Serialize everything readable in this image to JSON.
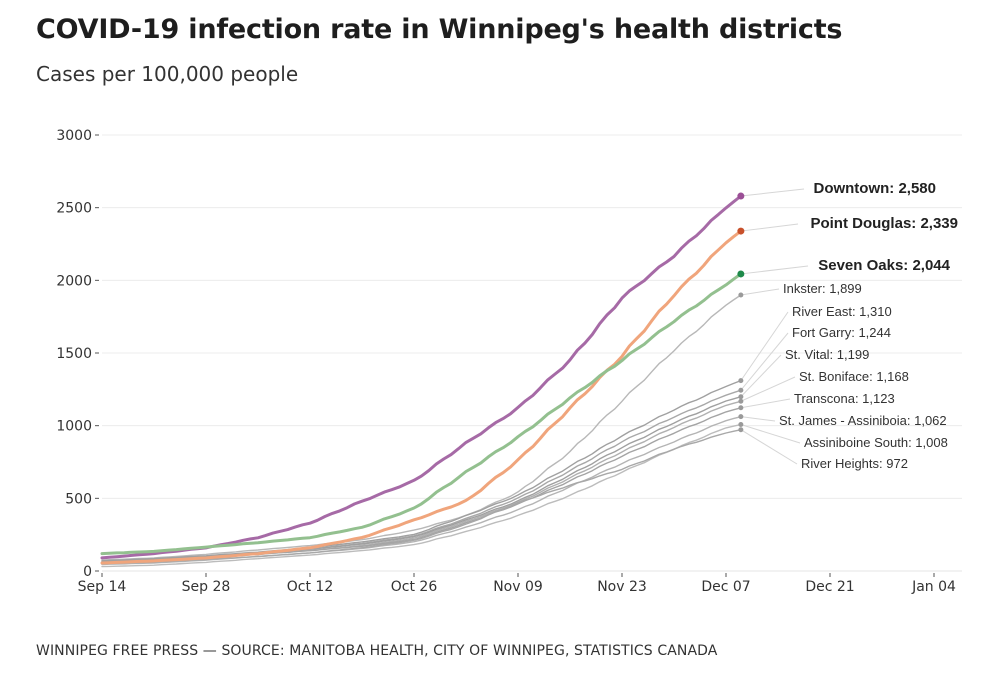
{
  "header": {
    "title": "COVID-19 infection rate in Winnipeg's health districts",
    "subtitle": "Cases per 100,000 people"
  },
  "footer": {
    "credit": "WINNIPEG FREE PRESS — SOURCE: MANITOBA HEALTH, CITY OF WINNIPEG, STATISTICS CANADA"
  },
  "chart_data": {
    "type": "line",
    "title": "COVID-19 infection rate in Winnipeg's health districts",
    "subtitle": "Cases per 100,000 people",
    "xlabel": "",
    "ylabel": "",
    "x_ticks": [
      "Sep 14",
      "Sep 28",
      "Oct 12",
      "Oct 26",
      "Nov 09",
      "Nov 23",
      "Dec 07",
      "Dec 21",
      "Jan 04"
    ],
    "x_tick_days": [
      0,
      14,
      28,
      42,
      56,
      70,
      84,
      98,
      112
    ],
    "xlim_days": [
      0,
      112
    ],
    "y_ticks": [
      0,
      500,
      1000,
      1500,
      2000,
      2500,
      3000
    ],
    "ylim": [
      0,
      3000
    ],
    "grid": true,
    "x_days": [
      0,
      7,
      14,
      21,
      28,
      35,
      42,
      49,
      56,
      63,
      70,
      77,
      84,
      86
    ],
    "x_dates": [
      "Sep 14",
      "Sep 21",
      "Sep 28",
      "Oct 05",
      "Oct 12",
      "Oct 19",
      "Oct 26",
      "Nov 02",
      "Nov 09",
      "Nov 16",
      "Nov 23",
      "Nov 30",
      "Dec 07",
      "Dec 09"
    ],
    "series": [
      {
        "name": "Downtown",
        "label": "Downtown: 2,580",
        "highlight": true,
        "color": "#a66aa6",
        "dot": "#9b4f96",
        "last": 2580,
        "values": [
          90,
          120,
          160,
          230,
          330,
          480,
          620,
          880,
          1120,
          1450,
          1880,
          2170,
          2500,
          2580
        ]
      },
      {
        "name": "Point Douglas",
        "label": "Point Douglas: 2,339",
        "highlight": true,
        "color": "#f0a57c",
        "dot": "#c8502a",
        "last": 2339,
        "values": [
          55,
          70,
          90,
          120,
          160,
          230,
          350,
          480,
          760,
          1120,
          1480,
          1900,
          2260,
          2339
        ]
      },
      {
        "name": "Seven Oaks",
        "label": "Seven Oaks: 2,044",
        "highlight": true,
        "color": "#93c08f",
        "dot": "#1e8a4a",
        "last": 2044,
        "values": [
          120,
          135,
          165,
          195,
          230,
          300,
          430,
          680,
          920,
          1190,
          1450,
          1720,
          1970,
          2044
        ]
      },
      {
        "name": "Inkster",
        "label": "Inkster: 1,899",
        "highlight": false,
        "color": "#b8b8b8",
        "dot": "#9a9a9a",
        "last": 1899,
        "values": [
          75,
          90,
          115,
          145,
          175,
          215,
          280,
          380,
          540,
          820,
          1170,
          1520,
          1830,
          1899
        ]
      },
      {
        "name": "River East",
        "label": "River East: 1,310",
        "highlight": false,
        "color": "#a0a0a0",
        "dot": "#9a9a9a",
        "last": 1310,
        "values": [
          70,
          85,
          105,
          130,
          160,
          200,
          250,
          380,
          520,
          720,
          930,
          1110,
          1270,
          1310
        ]
      },
      {
        "name": "Fort Garry",
        "label": "Fort Garry: 1,244",
        "highlight": false,
        "color": "#a8a8a8",
        "dot": "#9a9a9a",
        "last": 1244,
        "values": [
          60,
          75,
          95,
          120,
          150,
          190,
          240,
          360,
          500,
          690,
          890,
          1060,
          1210,
          1244
        ]
      },
      {
        "name": "St. Vital",
        "label": "St. Vital: 1,199",
        "highlight": false,
        "color": "#a0a0a0",
        "dot": "#9a9a9a",
        "last": 1199,
        "values": [
          65,
          80,
          100,
          125,
          150,
          185,
          235,
          350,
          480,
          660,
          850,
          1020,
          1170,
          1199
        ]
      },
      {
        "name": "St. Boniface",
        "label": "St. Boniface: 1,168",
        "highlight": false,
        "color": "#b0b0b0",
        "dot": "#9a9a9a",
        "last": 1168,
        "values": [
          55,
          70,
          90,
          115,
          140,
          175,
          225,
          340,
          470,
          640,
          820,
          990,
          1140,
          1168
        ]
      },
      {
        "name": "Transcona",
        "label": "Transcona: 1,123",
        "highlight": false,
        "color": "#a4a4a4",
        "dot": "#9a9a9a",
        "last": 1123,
        "values": [
          60,
          75,
          95,
          115,
          140,
          170,
          215,
          330,
          460,
          620,
          790,
          950,
          1095,
          1123
        ]
      },
      {
        "name": "St. James - Assiniboia",
        "label": "St. James - Assiniboia: 1,062",
        "highlight": false,
        "color": "#b4b4b4",
        "dot": "#9a9a9a",
        "last": 1062,
        "values": [
          45,
          55,
          75,
          100,
          125,
          155,
          200,
          300,
          420,
          580,
          740,
          890,
          1035,
          1062
        ]
      },
      {
        "name": "Assiniboine South",
        "label": "Assiniboine South: 1,008",
        "highlight": false,
        "color": "#bcbcbc",
        "dot": "#9a9a9a",
        "last": 1008,
        "values": [
          30,
          40,
          60,
          85,
          110,
          140,
          180,
          270,
          380,
          520,
          680,
          840,
          985,
          1008
        ]
      },
      {
        "name": "River Heights",
        "label": "River Heights: 972",
        "highlight": false,
        "color": "#a8a8a8",
        "dot": "#9a9a9a",
        "last": 972,
        "values": [
          50,
          60,
          80,
          100,
          125,
          160,
          210,
          320,
          470,
          590,
          700,
          840,
          950,
          972
        ]
      }
    ]
  }
}
